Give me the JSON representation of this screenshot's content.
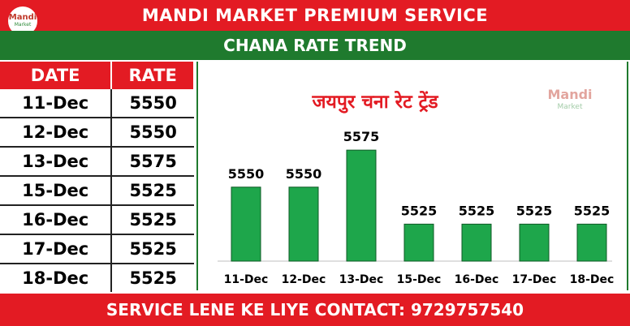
{
  "header": {
    "title": "MANDI MARKET PREMIUM SERVICE",
    "subtitle": "CHANA RATE TREND"
  },
  "logo": {
    "line1": "Mandi",
    "line2": "Market"
  },
  "table": {
    "headers": [
      "DATE",
      "RATE"
    ],
    "rows": [
      [
        "11-Dec",
        "5550"
      ],
      [
        "12-Dec",
        "5550"
      ],
      [
        "13-Dec",
        "5575"
      ],
      [
        "15-Dec",
        "5525"
      ],
      [
        "16-Dec",
        "5525"
      ],
      [
        "17-Dec",
        "5525"
      ],
      [
        "18-Dec",
        "5525"
      ]
    ]
  },
  "chart_data": {
    "type": "bar",
    "title": "जयपुर चना रेट ट्रेंड",
    "categories": [
      "11-Dec",
      "12-Dec",
      "13-Dec",
      "15-Dec",
      "16-Dec",
      "17-Dec",
      "18-Dec"
    ],
    "values": [
      5550,
      5550,
      5575,
      5525,
      5525,
      5525,
      5525
    ],
    "ylim": [
      5500,
      5580
    ],
    "grid": false,
    "bar_color": "#1ea64b"
  },
  "footer": {
    "contact": "SERVICE LENE KE LIYE CONTACT: 9729757540"
  },
  "colors": {
    "red": "#e31b23",
    "green": "#1f7a2e"
  }
}
